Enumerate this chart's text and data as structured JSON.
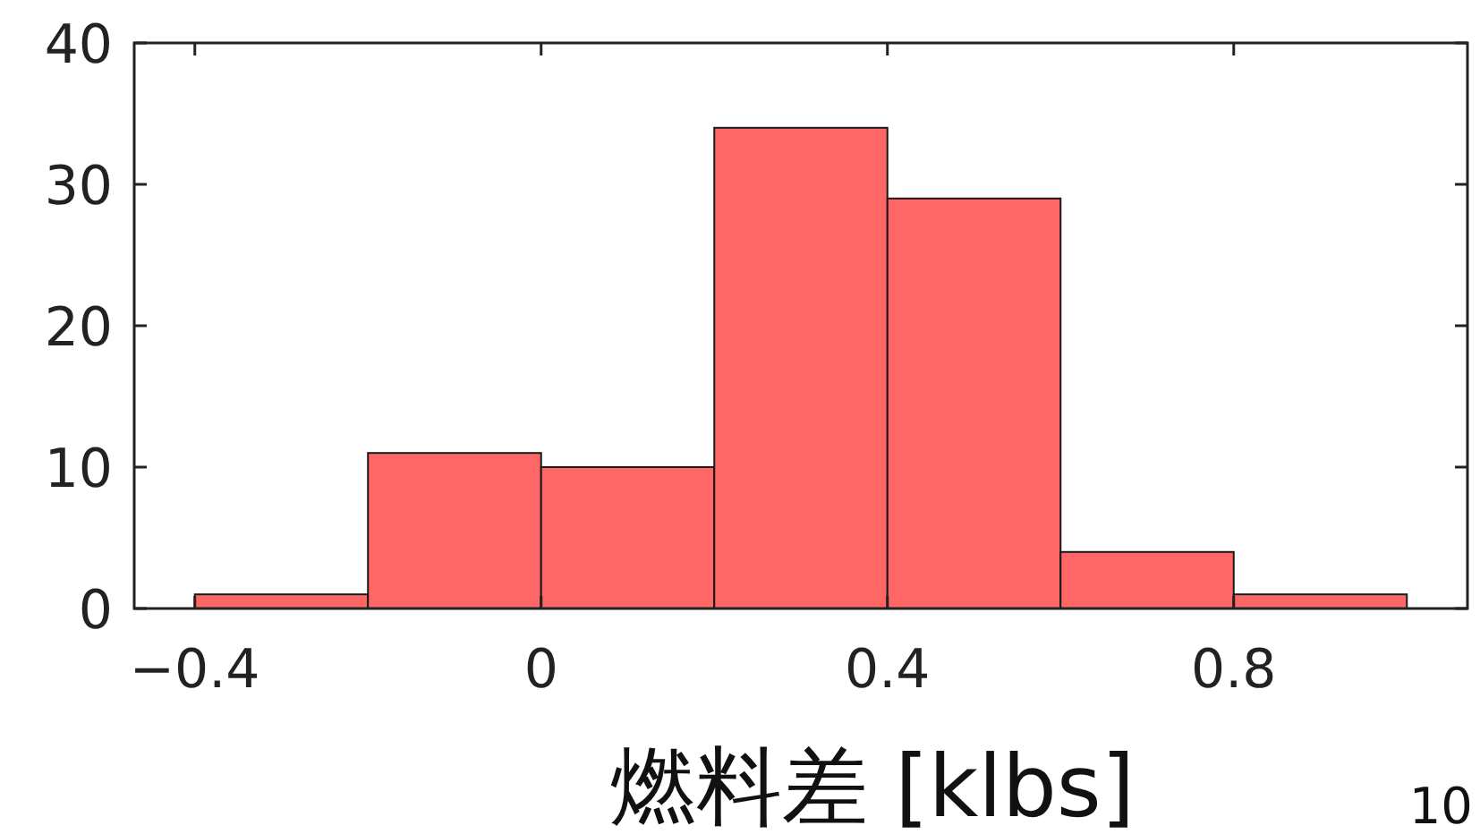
{
  "chart_data": {
    "type": "histogram",
    "xlabel": "燃料差 [klbs]",
    "bins": [
      -0.4,
      -0.2,
      0,
      0.2,
      0.4,
      0.6,
      0.8,
      1.0
    ],
    "values": [
      1,
      11,
      10,
      34,
      29,
      4,
      1
    ],
    "color": "#ff6666",
    "xlim": [
      -0.47,
      1.07
    ],
    "xticks": [
      -0.4,
      0,
      0.4,
      0.8
    ],
    "ylim": [
      0,
      40
    ],
    "yticks": [
      0,
      10,
      20,
      30,
      40
    ],
    "grid": false,
    "annotations": [
      "10"
    ]
  }
}
